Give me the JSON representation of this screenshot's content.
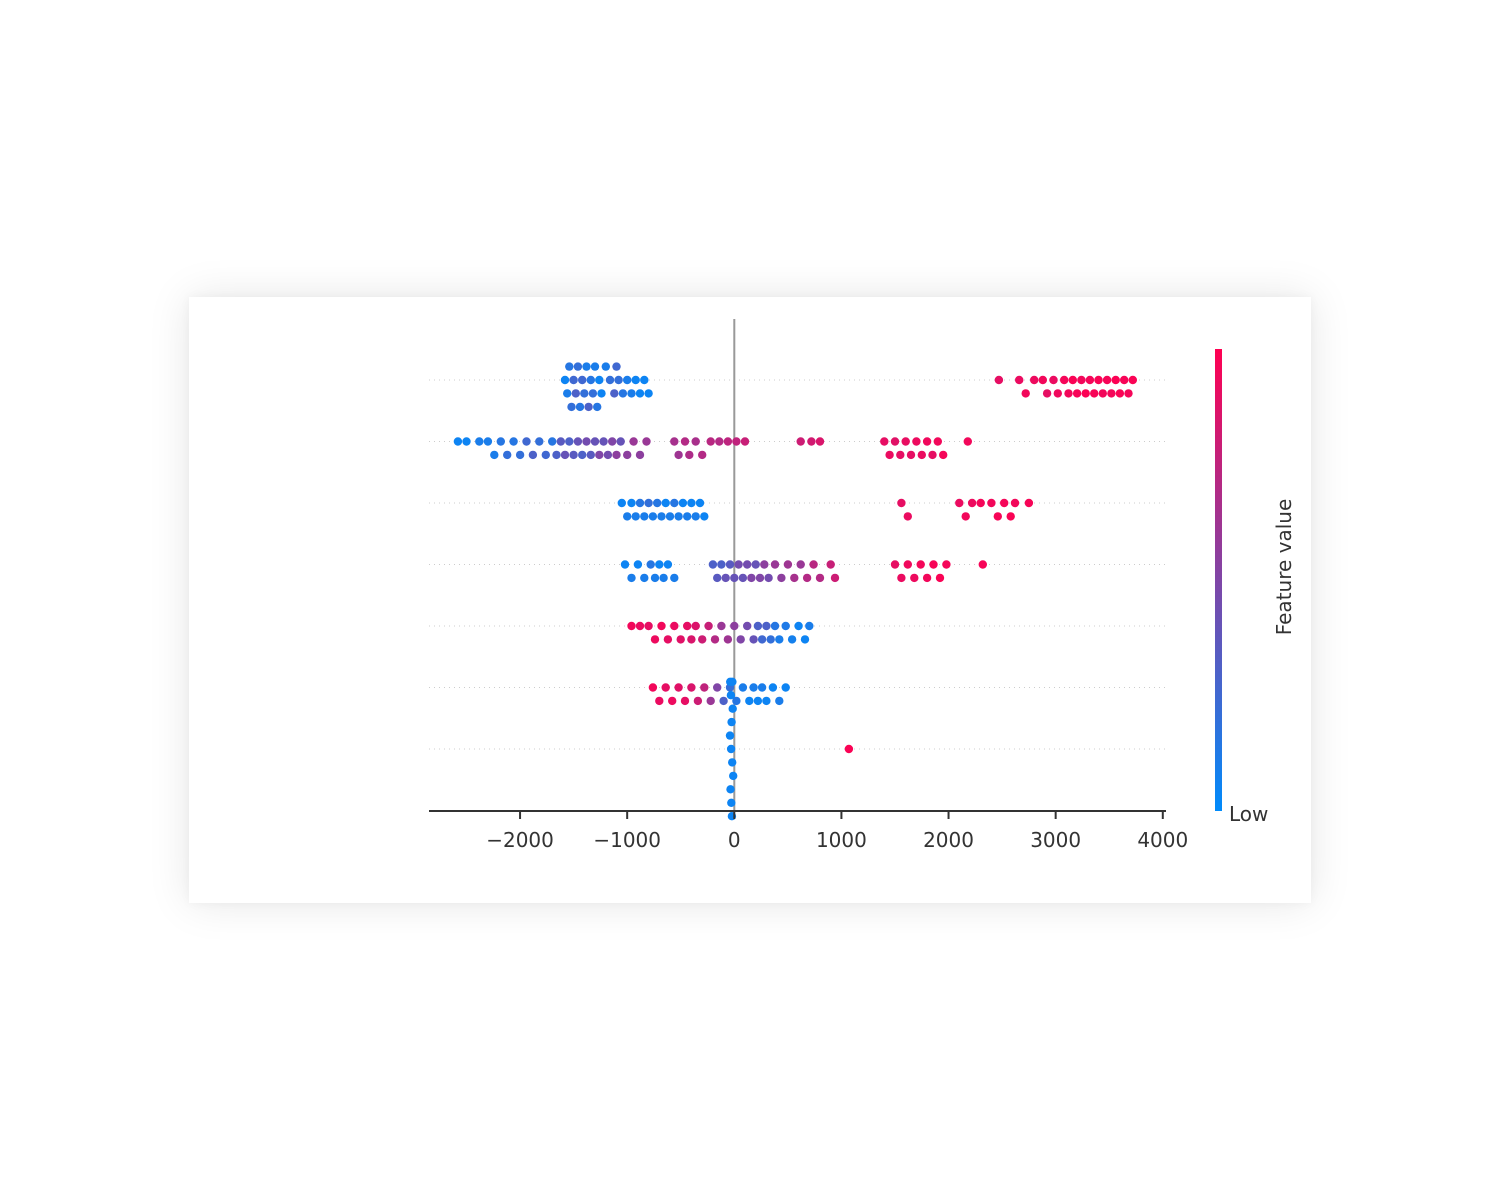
{
  "chart_data": {
    "type": "scatter",
    "title": "",
    "xlabel": "",
    "ylabel": "",
    "xlim": [
      -2850,
      4030
    ],
    "xticks": [
      -2000,
      -1000,
      0,
      1000,
      2000,
      3000,
      4000
    ],
    "xtick_labels": [
      "−2000",
      "−1000",
      "0",
      "1000",
      "2000",
      "3000",
      "4000"
    ],
    "grid": "dotted horizontal row lines",
    "zero_line": 0,
    "colorbar": {
      "label": "Feature value",
      "low_label": "Low",
      "high_label": "",
      "low_color": "#008bfb",
      "high_color": "#ff0052"
    },
    "series": [
      {
        "points": [
          [
            -1580,
            0.05
          ],
          [
            -1560,
            0.1
          ],
          [
            -1540,
            0.15
          ],
          [
            -1520,
            0.2
          ],
          [
            -1500,
            0.25
          ],
          [
            -1480,
            0.3
          ],
          [
            -1460,
            0.2
          ],
          [
            -1440,
            0.15
          ],
          [
            -1420,
            0.25
          ],
          [
            -1400,
            0.2
          ],
          [
            -1380,
            0.1
          ],
          [
            -1360,
            0.3
          ],
          [
            -1340,
            0.15
          ],
          [
            -1320,
            0.2
          ],
          [
            -1300,
            0.1
          ],
          [
            -1280,
            0.15
          ],
          [
            -1260,
            0.05
          ],
          [
            -1240,
            0.05
          ],
          [
            -1200,
            0.1
          ],
          [
            -1160,
            0.2
          ],
          [
            -1120,
            0.3
          ],
          [
            -1100,
            0.25
          ],
          [
            -1080,
            0.2
          ],
          [
            -1040,
            0.15
          ],
          [
            -1000,
            0.1
          ],
          [
            -960,
            0.1
          ],
          [
            -920,
            0.05
          ],
          [
            -880,
            0.05
          ],
          [
            -840,
            0.05
          ],
          [
            -800,
            0.05
          ],
          [
            2470,
            0.9
          ],
          [
            2660,
            0.92
          ],
          [
            2720,
            0.95
          ],
          [
            2800,
            0.93
          ],
          [
            2880,
            0.95
          ],
          [
            2920,
            0.9
          ],
          [
            2980,
            0.92
          ],
          [
            3020,
            0.94
          ],
          [
            3080,
            0.96
          ],
          [
            3120,
            0.95
          ],
          [
            3160,
            0.98
          ],
          [
            3200,
            0.97
          ],
          [
            3240,
            0.95
          ],
          [
            3280,
            0.99
          ],
          [
            3320,
            0.96
          ],
          [
            3360,
            0.97
          ],
          [
            3400,
            0.98
          ],
          [
            3440,
            0.95
          ],
          [
            3480,
            0.97
          ],
          [
            3520,
            0.96
          ],
          [
            3560,
            0.99
          ],
          [
            3600,
            0.98
          ],
          [
            3640,
            0.97
          ],
          [
            3680,
            0.96
          ],
          [
            3720,
            0.98
          ]
        ]
      },
      {
        "points": [
          [
            -2580,
            0.05
          ],
          [
            -2500,
            0.05
          ],
          [
            -2380,
            0.1
          ],
          [
            -2300,
            0.1
          ],
          [
            -2240,
            0.1
          ],
          [
            -2180,
            0.15
          ],
          [
            -2120,
            0.2
          ],
          [
            -2060,
            0.15
          ],
          [
            -2000,
            0.2
          ],
          [
            -1940,
            0.25
          ],
          [
            -1880,
            0.3
          ],
          [
            -1820,
            0.2
          ],
          [
            -1760,
            0.25
          ],
          [
            -1700,
            0.15
          ],
          [
            -1660,
            0.3
          ],
          [
            -1620,
            0.35
          ],
          [
            -1580,
            0.4
          ],
          [
            -1540,
            0.3
          ],
          [
            -1500,
            0.35
          ],
          [
            -1460,
            0.4
          ],
          [
            -1420,
            0.3
          ],
          [
            -1380,
            0.45
          ],
          [
            -1340,
            0.35
          ],
          [
            -1300,
            0.4
          ],
          [
            -1260,
            0.5
          ],
          [
            -1220,
            0.4
          ],
          [
            -1180,
            0.45
          ],
          [
            -1140,
            0.5
          ],
          [
            -1100,
            0.55
          ],
          [
            -1060,
            0.4
          ],
          [
            -1000,
            0.55
          ],
          [
            -940,
            0.6
          ],
          [
            -880,
            0.55
          ],
          [
            -820,
            0.6
          ],
          [
            -560,
            0.65
          ],
          [
            -520,
            0.62
          ],
          [
            -460,
            0.7
          ],
          [
            -420,
            0.68
          ],
          [
            -360,
            0.66
          ],
          [
            -300,
            0.7
          ],
          [
            -220,
            0.72
          ],
          [
            -140,
            0.7
          ],
          [
            -60,
            0.74
          ],
          [
            20,
            0.75
          ],
          [
            100,
            0.78
          ],
          [
            620,
            0.8
          ],
          [
            720,
            0.82
          ],
          [
            800,
            0.85
          ],
          [
            1400,
            0.9
          ],
          [
            1450,
            0.92
          ],
          [
            1500,
            0.88
          ],
          [
            1550,
            0.9
          ],
          [
            1600,
            0.91
          ],
          [
            1650,
            0.9
          ],
          [
            1700,
            0.93
          ],
          [
            1750,
            0.92
          ],
          [
            1800,
            0.94
          ],
          [
            1850,
            0.9
          ],
          [
            1900,
            0.95
          ],
          [
            1950,
            0.96
          ],
          [
            2180,
            0.95
          ]
        ]
      },
      {
        "points": [
          [
            -1050,
            0.05
          ],
          [
            -1000,
            0.1
          ],
          [
            -960,
            0.05
          ],
          [
            -920,
            0.1
          ],
          [
            -880,
            0.15
          ],
          [
            -840,
            0.1
          ],
          [
            -800,
            0.2
          ],
          [
            -760,
            0.1
          ],
          [
            -720,
            0.15
          ],
          [
            -680,
            0.1
          ],
          [
            -640,
            0.05
          ],
          [
            -600,
            0.1
          ],
          [
            -560,
            0.15
          ],
          [
            -520,
            0.1
          ],
          [
            -480,
            0.05
          ],
          [
            -440,
            0.1
          ],
          [
            -400,
            0.05
          ],
          [
            -360,
            0.1
          ],
          [
            -320,
            0.05
          ],
          [
            -280,
            0.05
          ],
          [
            1560,
            0.9
          ],
          [
            1620,
            0.92
          ],
          [
            2100,
            0.92
          ],
          [
            2160,
            0.95
          ],
          [
            2220,
            0.93
          ],
          [
            2300,
            0.96
          ],
          [
            2400,
            0.95
          ],
          [
            2460,
            0.97
          ],
          [
            2520,
            0.96
          ],
          [
            2580,
            0.98
          ],
          [
            2620,
            0.95
          ],
          [
            2750,
            0.97
          ]
        ]
      },
      {
        "points": [
          [
            -1020,
            0.05
          ],
          [
            -960,
            0.1
          ],
          [
            -900,
            0.05
          ],
          [
            -840,
            0.1
          ],
          [
            -780,
            0.15
          ],
          [
            -740,
            0.1
          ],
          [
            -700,
            0.05
          ],
          [
            -660,
            0.1
          ],
          [
            -620,
            0.05
          ],
          [
            -560,
            0.1
          ],
          [
            -200,
            0.3
          ],
          [
            -160,
            0.35
          ],
          [
            -120,
            0.3
          ],
          [
            -80,
            0.4
          ],
          [
            -40,
            0.35
          ],
          [
            0,
            0.4
          ],
          [
            40,
            0.45
          ],
          [
            80,
            0.4
          ],
          [
            120,
            0.45
          ],
          [
            160,
            0.5
          ],
          [
            200,
            0.4
          ],
          [
            240,
            0.5
          ],
          [
            280,
            0.55
          ],
          [
            320,
            0.45
          ],
          [
            380,
            0.6
          ],
          [
            440,
            0.55
          ],
          [
            500,
            0.62
          ],
          [
            560,
            0.65
          ],
          [
            620,
            0.6
          ],
          [
            680,
            0.7
          ],
          [
            740,
            0.72
          ],
          [
            800,
            0.7
          ],
          [
            900,
            0.78
          ],
          [
            940,
            0.8
          ],
          [
            1500,
            0.9
          ],
          [
            1560,
            0.92
          ],
          [
            1620,
            0.94
          ],
          [
            1680,
            0.93
          ],
          [
            1740,
            0.96
          ],
          [
            1800,
            0.95
          ],
          [
            1860,
            0.97
          ],
          [
            1920,
            0.98
          ],
          [
            1980,
            0.96
          ],
          [
            2320,
            0.97
          ]
        ]
      },
      {
        "points": [
          [
            -960,
            0.95
          ],
          [
            -880,
            0.92
          ],
          [
            -800,
            0.9
          ],
          [
            -740,
            0.93
          ],
          [
            -680,
            0.95
          ],
          [
            -620,
            0.9
          ],
          [
            -560,
            0.92
          ],
          [
            -500,
            0.88
          ],
          [
            -440,
            0.9
          ],
          [
            -400,
            0.85
          ],
          [
            -360,
            0.86
          ],
          [
            -300,
            0.8
          ],
          [
            -240,
            0.78
          ],
          [
            -180,
            0.7
          ],
          [
            -120,
            0.6
          ],
          [
            -60,
            0.62
          ],
          [
            0,
            0.55
          ],
          [
            60,
            0.5
          ],
          [
            120,
            0.45
          ],
          [
            180,
            0.4
          ],
          [
            220,
            0.3
          ],
          [
            260,
            0.25
          ],
          [
            300,
            0.3
          ],
          [
            340,
            0.2
          ],
          [
            380,
            0.15
          ],
          [
            420,
            0.1
          ],
          [
            480,
            0.12
          ],
          [
            540,
            0.08
          ],
          [
            600,
            0.05
          ],
          [
            660,
            0.05
          ],
          [
            700,
            0.1
          ]
        ]
      },
      {
        "points": [
          [
            -760,
            0.95
          ],
          [
            -700,
            0.92
          ],
          [
            -640,
            0.9
          ],
          [
            -580,
            0.93
          ],
          [
            -520,
            0.88
          ],
          [
            -460,
            0.9
          ],
          [
            -400,
            0.85
          ],
          [
            -340,
            0.8
          ],
          [
            -280,
            0.75
          ],
          [
            -220,
            0.6
          ],
          [
            -160,
            0.5
          ],
          [
            -100,
            0.3
          ],
          [
            -40,
            0.2
          ],
          [
            20,
            0.15
          ],
          [
            80,
            0.1
          ],
          [
            140,
            0.05
          ],
          [
            180,
            0.1
          ],
          [
            220,
            0.05
          ],
          [
            260,
            0.1
          ],
          [
            300,
            0.05
          ],
          [
            360,
            0.05
          ],
          [
            420,
            0.1
          ],
          [
            480,
            0.05
          ]
        ]
      },
      {
        "points": [
          [
            -30,
            0.05
          ],
          [
            -20,
            0.05
          ],
          [
            -40,
            0.05
          ],
          [
            -10,
            0.05
          ],
          [
            -25,
            0.05
          ],
          [
            -35,
            0.05
          ],
          [
            -15,
            0.05
          ],
          [
            -28,
            0.05
          ],
          [
            -32,
            0.05
          ],
          [
            -22,
            0.05
          ],
          [
            -18,
            0.05
          ],
          [
            -38,
            0.05
          ],
          [
            1070,
            0.98
          ]
        ]
      }
    ]
  }
}
